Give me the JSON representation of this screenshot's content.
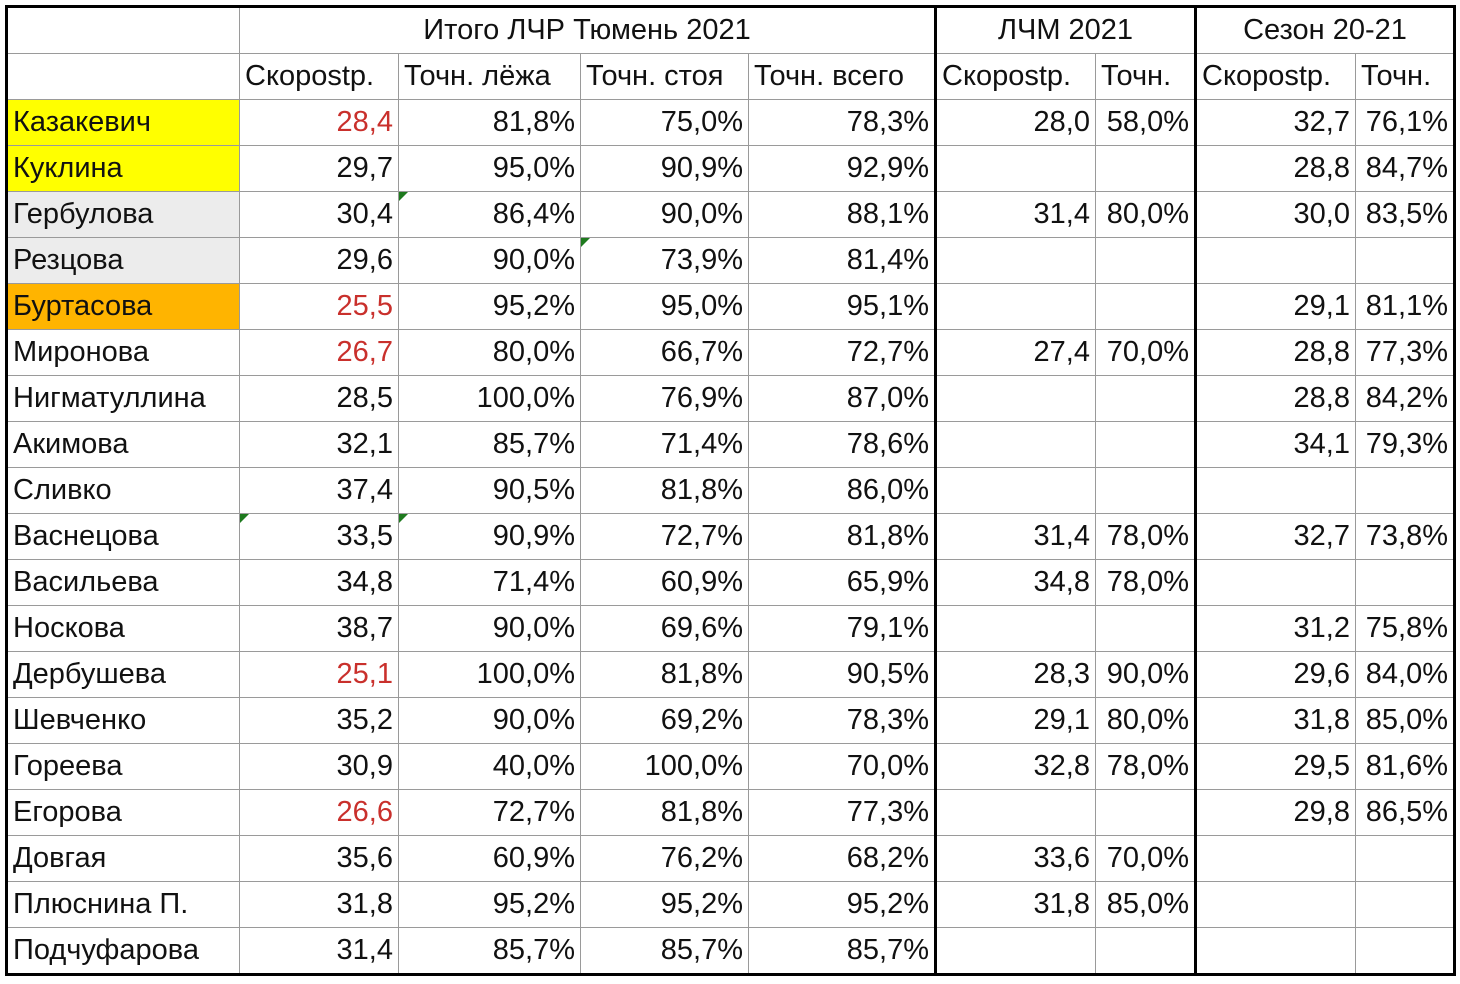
{
  "header": {
    "group1": "Итого ЛЧР Тюмень 2021",
    "group2": "ЛЧМ 2021",
    "group3": "Сезон 20-21",
    "cols": [
      "Скорostр.",
      "Точн. лёжа",
      "Точн. стоя",
      "Точн. всего",
      "Скорostр.",
      "Точн.",
      "Скорostр.",
      "Точн."
    ]
  },
  "colors": {
    "yellow": "#ffff00",
    "gray": "#ececec",
    "orange": "#ffb400",
    "red_text": "#c9302c"
  },
  "rows": [
    {
      "name": "Казакевич",
      "hl": "yellow",
      "s1": "28,4",
      "s1_red": true,
      "lying": "81,8%",
      "standing": "75,0%",
      "total": "78,3%",
      "lchm_speed": "28,0",
      "lchm_acc": "58,0%",
      "season_speed": "32,7",
      "season_acc": "76,1%"
    },
    {
      "name": "Куклина",
      "hl": "yellow",
      "s1": "29,7",
      "s1_red": false,
      "lying": "95,0%",
      "standing": "90,9%",
      "total": "92,9%",
      "lchm_speed": "",
      "lchm_acc": "",
      "season_speed": "28,8",
      "season_acc": "84,7%"
    },
    {
      "name": "Гербулова",
      "hl": "gray",
      "s1": "30,4",
      "s1_red": false,
      "lying": "86,4%",
      "standing": "90,0%",
      "total": "88,1%",
      "lchm_speed": "31,4",
      "lchm_acc": "80,0%",
      "season_speed": "30,0",
      "season_acc": "83,5%"
    },
    {
      "name": "Резцова",
      "hl": "gray",
      "s1": "29,6",
      "s1_red": false,
      "lying": "90,0%",
      "standing": "73,9%",
      "total": "81,4%",
      "lchm_speed": "",
      "lchm_acc": "",
      "season_speed": "",
      "season_acc": ""
    },
    {
      "name": "Буртасова",
      "hl": "orange",
      "s1": "25,5",
      "s1_red": true,
      "lying": "95,2%",
      "standing": "95,0%",
      "total": "95,1%",
      "lchm_speed": "",
      "lchm_acc": "",
      "season_speed": "29,1",
      "season_acc": "81,1%"
    },
    {
      "name": "Миронова",
      "hl": "",
      "s1": "26,7",
      "s1_red": true,
      "lying": "80,0%",
      "standing": "66,7%",
      "total": "72,7%",
      "lchm_speed": "27,4",
      "lchm_acc": "70,0%",
      "season_speed": "28,8",
      "season_acc": "77,3%"
    },
    {
      "name": "Нигматуллина",
      "hl": "",
      "s1": "28,5",
      "s1_red": false,
      "lying": "100,0%",
      "standing": "76,9%",
      "total": "87,0%",
      "lchm_speed": "",
      "lchm_acc": "",
      "season_speed": "28,8",
      "season_acc": "84,2%"
    },
    {
      "name": "Акимова",
      "hl": "",
      "s1": "32,1",
      "s1_red": false,
      "lying": "85,7%",
      "standing": "71,4%",
      "total": "78,6%",
      "lchm_speed": "",
      "lchm_acc": "",
      "season_speed": "34,1",
      "season_acc": "79,3%"
    },
    {
      "name": "Сливко",
      "hl": "",
      "s1": "37,4",
      "s1_red": false,
      "lying": "90,5%",
      "standing": "81,8%",
      "total": "86,0%",
      "lchm_speed": "",
      "lchm_acc": "",
      "season_speed": "",
      "season_acc": ""
    },
    {
      "name": "Васнецова",
      "hl": "",
      "s1": "33,5",
      "s1_red": false,
      "lying": "90,9%",
      "standing": "72,7%",
      "total": "81,8%",
      "lchm_speed": "31,4",
      "lchm_acc": "78,0%",
      "season_speed": "32,7",
      "season_acc": "73,8%"
    },
    {
      "name": "Васильева",
      "hl": "",
      "s1": "34,8",
      "s1_red": false,
      "lying": "71,4%",
      "standing": "60,9%",
      "total": "65,9%",
      "lchm_speed": "34,8",
      "lchm_acc": "78,0%",
      "season_speed": "",
      "season_acc": ""
    },
    {
      "name": "Носкова",
      "hl": "",
      "s1": "38,7",
      "s1_red": false,
      "lying": "90,0%",
      "standing": "69,6%",
      "total": "79,1%",
      "lchm_speed": "",
      "lchm_acc": "",
      "season_speed": "31,2",
      "season_acc": "75,8%"
    },
    {
      "name": "Дербушева",
      "hl": "",
      "s1": "25,1",
      "s1_red": true,
      "lying": "100,0%",
      "standing": "81,8%",
      "total": "90,5%",
      "lchm_speed": "28,3",
      "lchm_acc": "90,0%",
      "season_speed": "29,6",
      "season_acc": "84,0%"
    },
    {
      "name": "Шевченко",
      "hl": "",
      "s1": "35,2",
      "s1_red": false,
      "lying": "90,0%",
      "standing": "69,2%",
      "total": "78,3%",
      "lchm_speed": "29,1",
      "lchm_acc": "80,0%",
      "season_speed": "31,8",
      "season_acc": "85,0%"
    },
    {
      "name": "Гореева",
      "hl": "",
      "s1": "30,9",
      "s1_red": false,
      "lying": "40,0%",
      "standing": "100,0%",
      "total": "70,0%",
      "lchm_speed": "32,8",
      "lchm_acc": "78,0%",
      "season_speed": "29,5",
      "season_acc": "81,6%"
    },
    {
      "name": "Егорова",
      "hl": "",
      "s1": "26,6",
      "s1_red": true,
      "lying": "72,7%",
      "standing": "81,8%",
      "total": "77,3%",
      "lchm_speed": "",
      "lchm_acc": "",
      "season_speed": "29,8",
      "season_acc": "86,5%"
    },
    {
      "name": "Довгая",
      "hl": "",
      "s1": "35,6",
      "s1_red": false,
      "lying": "60,9%",
      "standing": "76,2%",
      "total": "68,2%",
      "lchm_speed": "33,6",
      "lchm_acc": "70,0%",
      "season_speed": "",
      "season_acc": ""
    },
    {
      "name": "Плюснина П.",
      "hl": "",
      "s1": "31,8",
      "s1_red": false,
      "lying": "95,2%",
      "standing": "95,2%",
      "total": "95,2%",
      "lchm_speed": "31,8",
      "lchm_acc": "85,0%",
      "season_speed": "",
      "season_acc": ""
    },
    {
      "name": "Подчуфарова",
      "hl": "",
      "s1": "31,4",
      "s1_red": false,
      "lying": "85,7%",
      "standing": "85,7%",
      "total": "85,7%",
      "lchm_speed": "",
      "lchm_acc": "",
      "season_speed": "",
      "season_acc": ""
    }
  ]
}
